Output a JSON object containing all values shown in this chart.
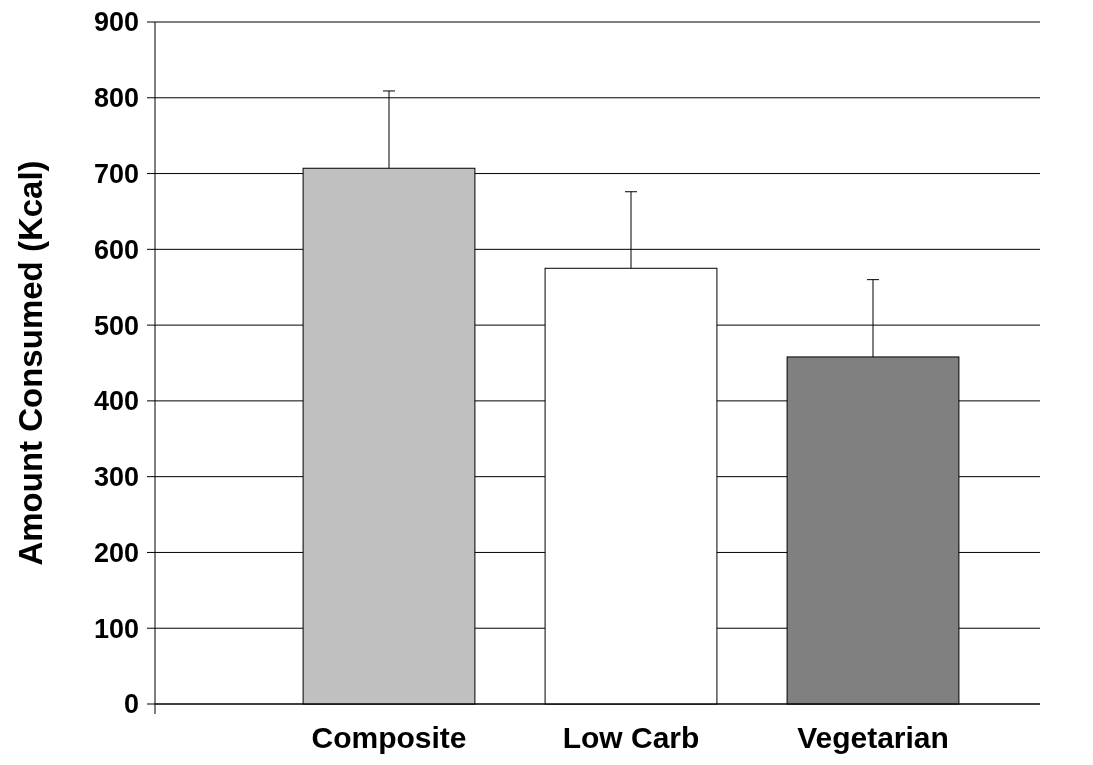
{
  "chart_data": {
    "type": "bar",
    "ylabel": "Amount Consumed (Kcal)",
    "categories": [
      "Composite",
      "Low Carb",
      "Vegetarian"
    ],
    "values": [
      707,
      575,
      458
    ],
    "colors": [
      "#c0c0c0",
      "#ffffff",
      "#808080"
    ],
    "errors": [
      [
        707,
        809
      ],
      [
        575,
        676
      ],
      [
        458,
        560
      ]
    ],
    "ylim": [
      0,
      900
    ],
    "yticks": [
      0,
      100,
      200,
      300,
      400,
      500,
      600,
      700,
      800,
      900
    ],
    "grid": "y"
  }
}
